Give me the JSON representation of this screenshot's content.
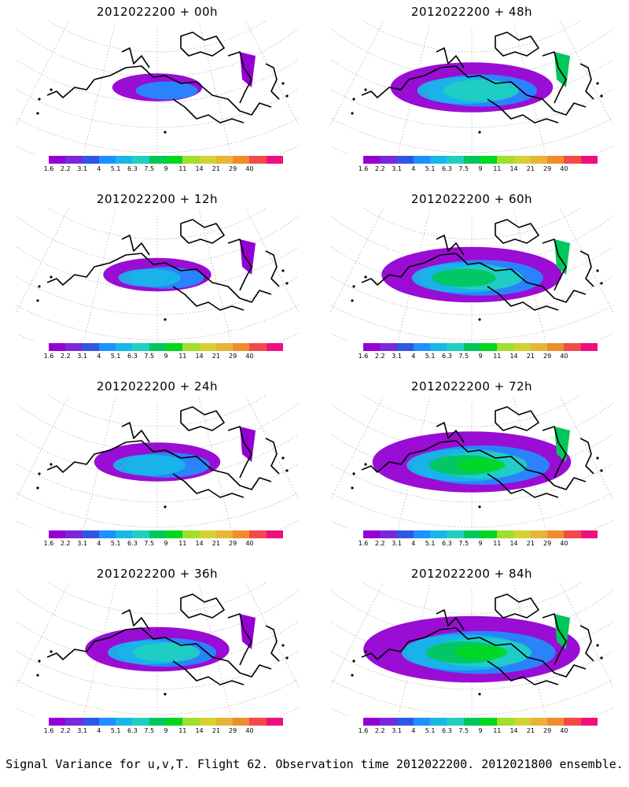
{
  "caption": "Signal Variance for u,v,T. Flight 62. Observation time 2012022200. 2012021800 ensemble.",
  "colorbar": {
    "labels": [
      "1.6",
      "2.2",
      "3.1",
      "4",
      "5.1",
      "6.3",
      "7.5",
      "9",
      "11",
      "14",
      "21",
      "29",
      "40"
    ],
    "colors": [
      "#9400d3",
      "#7b28d8",
      "#2f57e6",
      "#1e90ff",
      "#18b7e8",
      "#1fcfc0",
      "#00c75a",
      "#00d820",
      "#9ee02c",
      "#d2d232",
      "#e8b437",
      "#ef8c2e",
      "#f24a4a",
      "#ef0f7f"
    ]
  },
  "panels": [
    {
      "title": "2012022200 + 00h",
      "intensity": 0.15
    },
    {
      "title": "2012022200 + 48h",
      "intensity": 0.55
    },
    {
      "title": "2012022200 + 12h",
      "intensity": 0.25
    },
    {
      "title": "2012022200 + 60h",
      "intensity": 0.65
    },
    {
      "title": "2012022200 + 24h",
      "intensity": 0.35
    },
    {
      "title": "2012022200 + 72h",
      "intensity": 0.75
    },
    {
      "title": "2012022200 + 36h",
      "intensity": 0.45
    },
    {
      "title": "2012022200 + 84h",
      "intensity": 0.85
    }
  ]
}
